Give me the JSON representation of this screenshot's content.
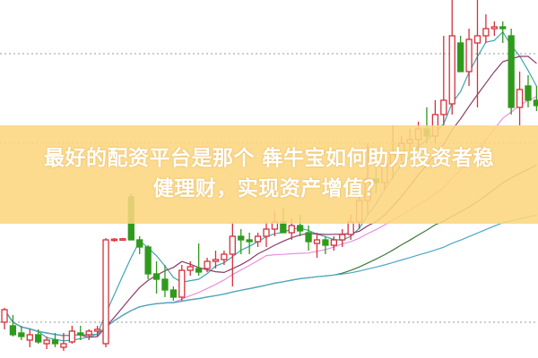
{
  "headline": {
    "line1": "最好的配资平台是那个 犇牛宝如何助力投资者稳",
    "line2": "健理财，实现资产增值？"
  },
  "colors": {
    "up": "#d6303a",
    "down": "#2f9a1c",
    "banner": "#fcd680",
    "ma_short": "#3aa8b0",
    "ma_mid": "#8a3a6a",
    "ma_long": "#e890e0",
    "ma_longer": "#3f7a3a",
    "ma_longest": "#4aa8c8",
    "grid": "#999999"
  },
  "chart_data": {
    "type": "candlestick",
    "title": "",
    "grid": "dotted horizontal",
    "moving_averages": [
      5,
      10,
      20,
      40,
      80
    ],
    "candles_ohlc": [
      [
        10,
        14,
        8,
        13.5
      ],
      [
        9,
        12,
        6,
        6.5
      ],
      [
        7,
        9,
        5,
        6
      ],
      [
        5,
        8,
        3,
        6.5
      ],
      [
        6.5,
        8,
        4,
        4.5
      ],
      [
        4,
        6,
        2.5,
        5
      ],
      [
        5,
        7,
        3,
        4
      ],
      [
        3,
        7,
        2,
        4
      ],
      [
        4.5,
        9,
        4,
        7.5
      ],
      [
        7,
        9,
        5,
        6.5
      ],
      [
        6.5,
        8,
        5,
        7.5
      ],
      [
        7.5,
        9,
        6,
        8
      ],
      [
        4,
        33.5,
        3,
        33
      ],
      [
        33,
        33.5,
        32.5,
        33.2
      ],
      [
        33.2,
        33.5,
        33,
        33.3
      ],
      [
        45,
        46,
        33,
        33
      ],
      [
        33,
        34,
        29,
        31
      ],
      [
        31,
        31.5,
        22,
        23.5
      ],
      [
        23.5,
        27,
        18,
        22
      ],
      [
        22,
        26,
        17,
        19
      ],
      [
        19,
        20,
        16,
        17
      ],
      [
        17,
        26,
        16,
        24.5
      ],
      [
        24.5,
        27,
        23,
        25.5
      ],
      [
        25,
        32,
        23,
        24
      ],
      [
        25,
        28,
        24,
        27
      ],
      [
        27,
        30,
        25,
        27.5
      ],
      [
        27.5,
        30,
        26,
        29
      ],
      [
        29,
        38,
        20,
        34
      ],
      [
        34,
        36,
        29,
        33
      ],
      [
        33,
        35,
        29,
        32.5
      ],
      [
        32.5,
        35,
        31,
        34
      ],
      [
        34,
        38,
        31,
        36
      ],
      [
        36,
        41,
        34,
        38
      ],
      [
        38,
        42,
        36,
        35
      ],
      [
        35,
        39,
        33,
        37
      ],
      [
        37,
        40,
        34,
        35.5
      ],
      [
        35,
        37,
        30,
        32.5
      ],
      [
        32,
        35,
        28,
        33
      ],
      [
        33,
        34,
        29,
        31.5
      ],
      [
        31.5,
        34,
        30,
        33
      ],
      [
        33,
        36,
        31,
        34.5
      ],
      [
        34.5,
        40,
        33,
        38
      ],
      [
        38,
        50,
        36,
        44
      ],
      [
        44,
        60,
        40,
        50
      ],
      [
        50,
        58,
        46,
        49
      ],
      [
        49,
        56,
        47,
        54
      ],
      [
        54,
        65,
        50,
        57
      ],
      [
        57,
        62,
        55,
        60
      ],
      [
        60,
        64,
        58,
        61
      ],
      [
        61,
        66,
        58,
        64
      ],
      [
        64,
        70,
        60,
        62
      ],
      [
        62,
        72,
        60,
        68
      ],
      [
        68,
        90,
        65,
        72
      ],
      [
        71,
        100,
        68,
        90
      ],
      [
        88,
        90,
        80,
        80
      ],
      [
        80,
        92,
        76,
        89
      ],
      [
        88,
        100,
        70,
        90
      ],
      [
        90,
        96,
        88,
        92
      ],
      [
        92,
        94,
        90,
        92.5
      ],
      [
        92.5,
        94,
        88,
        92
      ],
      [
        90,
        92,
        68,
        70
      ],
      [
        70,
        80,
        65,
        75
      ],
      [
        76,
        79,
        70,
        72
      ],
      [
        72,
        76,
        69,
        70.5
      ]
    ]
  }
}
